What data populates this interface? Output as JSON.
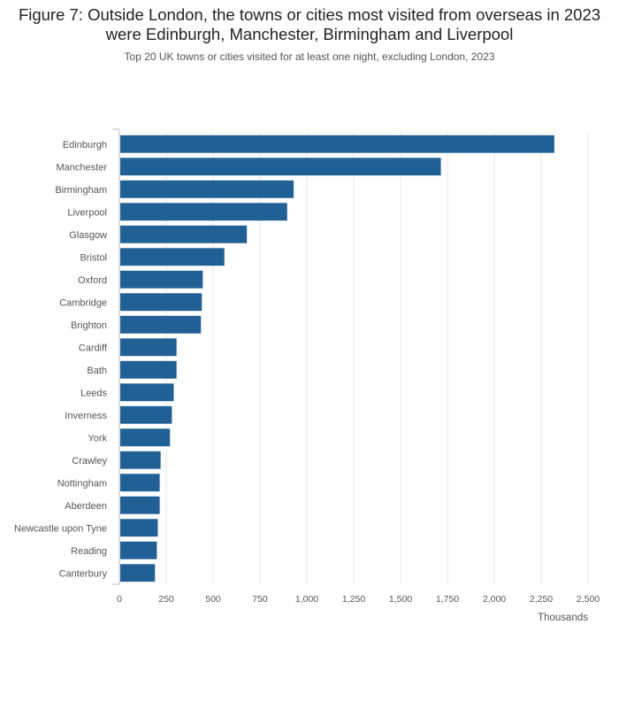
{
  "title": "Figure 7: Outside London, the towns or cities most visited from overseas in 2023 were Edinburgh, Manchester, Birmingham and Liverpool",
  "subtitle": "Top 20 UK towns or cities visited for at least one night, excluding London, 2023",
  "chart_data": {
    "type": "bar",
    "orientation": "horizontal",
    "categories": [
      "Edinburgh",
      "Manchester",
      "Birmingham",
      "Liverpool",
      "Glasgow",
      "Bristol",
      "Oxford",
      "Cambridge",
      "Brighton",
      "Cardiff",
      "Bath",
      "Leeds",
      "Inverness",
      "York",
      "Crawley",
      "Nottingham",
      "Aberdeen",
      "Newcastle upon Tyne",
      "Reading",
      "Canterbury"
    ],
    "values": [
      2320,
      1715,
      930,
      895,
      680,
      560,
      445,
      440,
      435,
      305,
      305,
      290,
      280,
      270,
      220,
      215,
      215,
      205,
      200,
      190
    ],
    "xlabel": "Thousands",
    "xlim": [
      0,
      2500
    ],
    "xticks": [
      0,
      250,
      500,
      750,
      1000,
      1250,
      1500,
      1750,
      2000,
      2250,
      2500
    ],
    "xtick_labels": [
      "0",
      "250",
      "500",
      "750",
      "1,000",
      "1,250",
      "1,500",
      "1,750",
      "2,000",
      "2,250",
      "2,500"
    ],
    "bar_color": "#206095",
    "grid": true
  }
}
